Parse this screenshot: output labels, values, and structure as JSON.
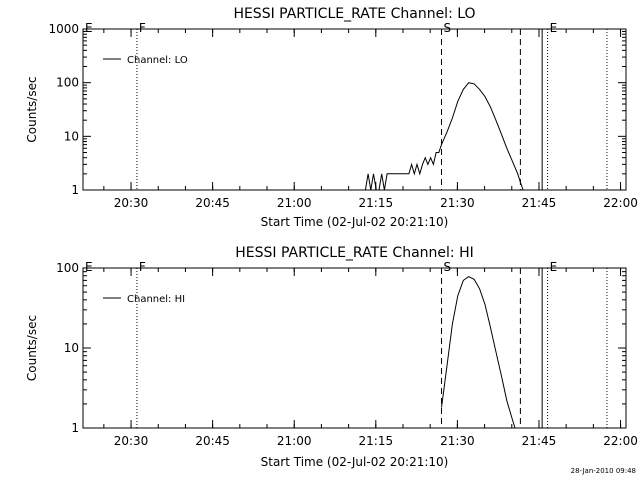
{
  "chart_data": [
    {
      "type": "line",
      "title": "HESSI PARTICLE_RATE Channel: LO",
      "xlabel": "Start Time (02-Jul-02 20:21:10)",
      "ylabel": "Counts/sec",
      "y_scale": "log",
      "xlim": [
        "20:21:10",
        "22:01:00"
      ],
      "ylim": [
        1,
        1000
      ],
      "x_ticks": [
        "20:30",
        "20:45",
        "21:00",
        "21:15",
        "21:30",
        "21:45",
        "22:00"
      ],
      "y_ticks": [
        "1",
        "10",
        "100",
        "1000"
      ],
      "legend": {
        "position": "top-left",
        "entries": [
          "Channel: LO"
        ]
      },
      "markers": [
        {
          "label": "E",
          "time": "20:21:10",
          "style": "solid"
        },
        {
          "label": "F",
          "time": "20:31:05",
          "style": "dotted"
        },
        {
          "label": "S",
          "time": "21:27:05",
          "style": "dashed"
        },
        {
          "label": "",
          "time": "21:41:35",
          "style": "dashed"
        },
        {
          "label": "",
          "time": "21:45:35",
          "style": "solid"
        },
        {
          "label": "E",
          "time": "21:46:35",
          "style": "dotted"
        },
        {
          "label": "",
          "time": "21:57:30",
          "style": "dotted"
        }
      ],
      "series": [
        {
          "name": "Channel: LO",
          "points": [
            [
              "21:13:05",
              1
            ],
            [
              "21:13:35",
              2
            ],
            [
              "21:14:05",
              1
            ],
            [
              "21:14:35",
              2
            ],
            [
              "21:15:05",
              1
            ],
            [
              "21:15:35",
              1
            ],
            [
              "21:16:05",
              2
            ],
            [
              "21:16:35",
              1
            ],
            [
              "21:17:05",
              2
            ],
            [
              "21:18:05",
              2
            ],
            [
              "21:19:05",
              2
            ],
            [
              "21:20:05",
              2
            ],
            [
              "21:21:05",
              2
            ],
            [
              "21:21:35",
              3
            ],
            [
              "21:22:05",
              2
            ],
            [
              "21:22:35",
              3
            ],
            [
              "21:23:05",
              2
            ],
            [
              "21:23:35",
              3
            ],
            [
              "21:24:05",
              4
            ],
            [
              "21:24:35",
              3
            ],
            [
              "21:25:05",
              4
            ],
            [
              "21:25:35",
              3
            ],
            [
              "21:26:05",
              5
            ],
            [
              "21:26:35",
              5
            ],
            [
              "21:27:05",
              7
            ],
            [
              "21:28:05",
              12
            ],
            [
              "21:29:05",
              22
            ],
            [
              "21:30:05",
              45
            ],
            [
              "21:31:05",
              75
            ],
            [
              "21:32:05",
              100
            ],
            [
              "21:33:05",
              95
            ],
            [
              "21:34:05",
              75
            ],
            [
              "21:35:05",
              55
            ],
            [
              "21:36:05",
              35
            ],
            [
              "21:37:05",
              20
            ],
            [
              "21:38:05",
              11
            ],
            [
              "21:39:05",
              6
            ],
            [
              "21:40:05",
              3.5
            ],
            [
              "21:41:05",
              2
            ],
            [
              "21:41:35",
              1.4
            ],
            [
              "21:42:05",
              1
            ]
          ]
        }
      ]
    },
    {
      "type": "line",
      "title": "HESSI PARTICLE_RATE Channel: HI",
      "xlabel": "Start Time (02-Jul-02 20:21:10)",
      "ylabel": "Counts/sec",
      "y_scale": "log",
      "xlim": [
        "20:21:10",
        "22:01:00"
      ],
      "ylim": [
        1,
        100
      ],
      "x_ticks": [
        "20:30",
        "20:45",
        "21:00",
        "21:15",
        "21:30",
        "21:45",
        "22:00"
      ],
      "y_ticks": [
        "1",
        "10",
        "100"
      ],
      "legend": {
        "position": "top-left",
        "entries": [
          "Channel: HI"
        ]
      },
      "markers": [
        {
          "label": "E",
          "time": "20:21:10",
          "style": "solid"
        },
        {
          "label": "F",
          "time": "20:31:05",
          "style": "dotted"
        },
        {
          "label": "S",
          "time": "21:27:05",
          "style": "dashed"
        },
        {
          "label": "",
          "time": "21:41:35",
          "style": "dashed"
        },
        {
          "label": "",
          "time": "21:45:35",
          "style": "solid"
        },
        {
          "label": "E",
          "time": "21:46:35",
          "style": "dotted"
        },
        {
          "label": "",
          "time": "21:57:30",
          "style": "dotted"
        }
      ],
      "series": [
        {
          "name": "Channel: HI",
          "points": [
            [
              "21:27:05",
              1.8
            ],
            [
              "21:28:05",
              6
            ],
            [
              "21:29:05",
              20
            ],
            [
              "21:30:05",
              45
            ],
            [
              "21:31:05",
              70
            ],
            [
              "21:32:05",
              78
            ],
            [
              "21:33:05",
              72
            ],
            [
              "21:34:05",
              55
            ],
            [
              "21:35:05",
              35
            ],
            [
              "21:36:05",
              18
            ],
            [
              "21:37:05",
              9
            ],
            [
              "21:38:05",
              4.5
            ],
            [
              "21:39:05",
              2.2
            ],
            [
              "21:40:05",
              1.3
            ],
            [
              "21:40:35",
              1
            ]
          ]
        }
      ]
    }
  ],
  "footer": {
    "timestamp": "28-Jan-2010 09:48"
  }
}
